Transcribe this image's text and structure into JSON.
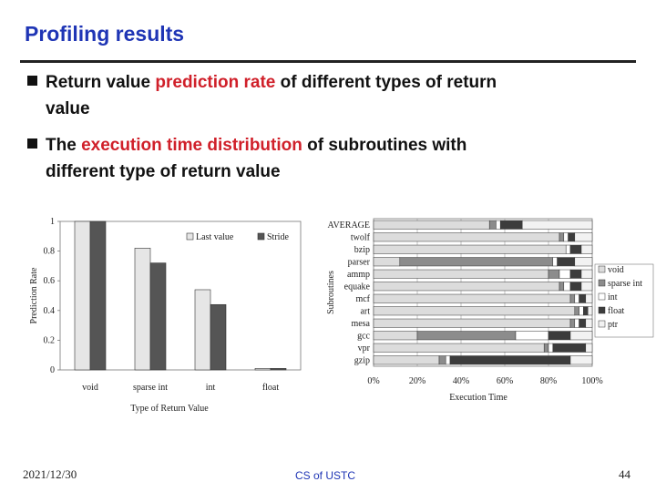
{
  "title": "Profiling results",
  "bullets": [
    [
      [
        "Return value ",
        "prediction rate",
        " of different types of return"
      ],
      [
        "value"
      ]
    ],
    [
      [
        "The ",
        "execution time distribution",
        " of subroutines with"
      ],
      [
        "different type of return value"
      ]
    ]
  ],
  "footer": {
    "date": "2021/12/30",
    "center": "CS of USTC",
    "page": "44"
  },
  "chart_data": [
    {
      "type": "bar",
      "ylabel": "Prediction Rate",
      "xlabel": "Type of Return Value",
      "categories": [
        "void",
        "sparse int",
        "int",
        "float"
      ],
      "series": [
        {
          "name": "Last value",
          "color": "#e6e6e6",
          "values": [
            1.0,
            0.82,
            0.54,
            0.01
          ]
        },
        {
          "name": "Stride",
          "color": "#555555",
          "values": [
            1.0,
            0.72,
            0.44,
            0.01
          ]
        }
      ],
      "ylim": [
        0,
        1
      ],
      "yticks": [
        0,
        0.2,
        0.4,
        0.6,
        0.8,
        1
      ],
      "grid": false
    },
    {
      "type": "stacked-hbar",
      "ylabel": "Subroutines",
      "xlabel": "Execution Time",
      "categories": [
        "AVERAGE",
        "twolf",
        "bzip",
        "parser",
        "ammp",
        "equake",
        "mcf",
        "art",
        "mesa",
        "gcc",
        "vpr",
        "gzip"
      ],
      "series": [
        {
          "name": "void",
          "color": "#dcdcdc",
          "values": [
            53,
            85,
            88,
            12,
            80,
            85,
            90,
            92,
            90,
            20,
            78,
            30
          ]
        },
        {
          "name": "sparse int",
          "color": "#8c8c8c",
          "values": [
            3,
            2,
            0,
            70,
            5,
            2,
            2,
            2,
            2,
            45,
            2,
            3
          ]
        },
        {
          "name": "int",
          "color": "#ffffff",
          "values": [
            2,
            2,
            2,
            2,
            5,
            3,
            2,
            2,
            2,
            15,
            2,
            2
          ]
        },
        {
          "name": "float",
          "color": "#3c3c3c",
          "values": [
            10,
            3,
            5,
            8,
            5,
            5,
            3,
            2,
            3,
            10,
            15,
            55
          ]
        },
        {
          "name": "ptr",
          "color": "#f2f2f2",
          "values": [
            32,
            8,
            5,
            8,
            5,
            5,
            3,
            2,
            3,
            10,
            3,
            10
          ]
        }
      ],
      "xlim": [
        0,
        100
      ],
      "xticks": [
        {
          "value": 0,
          "label": "0%"
        },
        {
          "value": 20,
          "label": "20%"
        },
        {
          "value": 40,
          "label": "40%"
        },
        {
          "value": 60,
          "label": "60%"
        },
        {
          "value": 80,
          "label": "80%"
        },
        {
          "value": 100,
          "label": "100%"
        }
      ],
      "grid": true
    }
  ]
}
